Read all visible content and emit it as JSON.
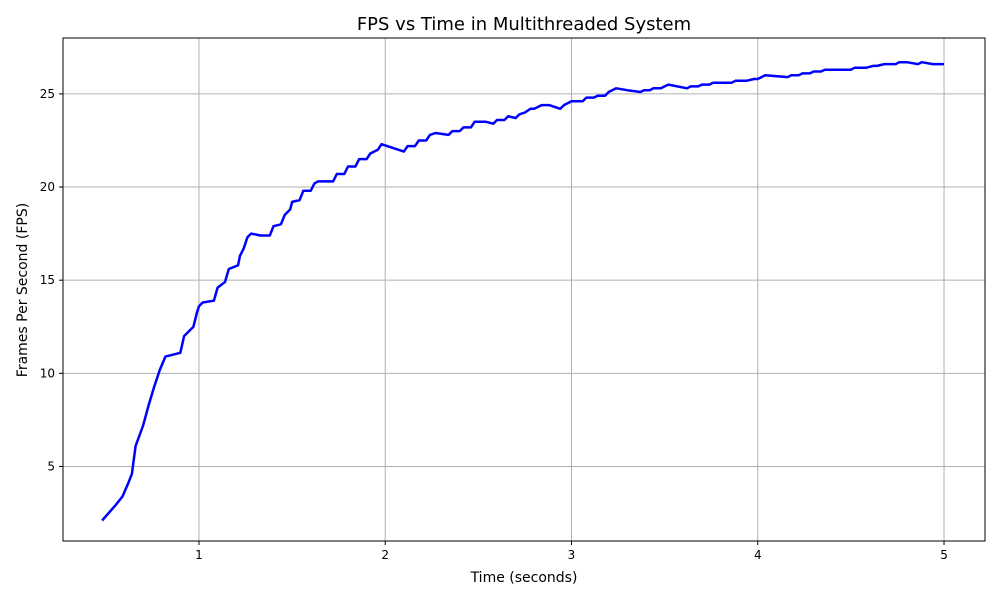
{
  "chart_data": {
    "type": "line",
    "title": "FPS vs Time in Multithreaded System",
    "xlabel": "Time (seconds)",
    "ylabel": "Frames Per Second (FPS)",
    "xlim": [
      0.27,
      5.22
    ],
    "ylim": [
      1.0,
      28.0
    ],
    "xticks": [
      1,
      2,
      3,
      4,
      5
    ],
    "yticks": [
      5,
      10,
      15,
      20,
      25
    ],
    "grid": true,
    "series_color": "#0000ff",
    "x": [
      0.48,
      0.55,
      0.59,
      0.62,
      0.64,
      0.66,
      0.7,
      0.73,
      0.76,
      0.79,
      0.82,
      0.9,
      0.92,
      0.95,
      0.97,
      0.99,
      1.0,
      1.02,
      1.08,
      1.1,
      1.14,
      1.16,
      1.21,
      1.22,
      1.24,
      1.26,
      1.28,
      1.33,
      1.38,
      1.4,
      1.44,
      1.46,
      1.49,
      1.5,
      1.54,
      1.56,
      1.6,
      1.62,
      1.64,
      1.72,
      1.74,
      1.78,
      1.8,
      1.84,
      1.86,
      1.9,
      1.92,
      1.94,
      1.96,
      1.98,
      2.1,
      2.12,
      2.16,
      2.18,
      2.22,
      2.24,
      2.27,
      2.34,
      2.36,
      2.4,
      2.42,
      2.46,
      2.48,
      2.51,
      2.54,
      2.58,
      2.6,
      2.64,
      2.66,
      2.7,
      2.72,
      2.75,
      2.78,
      2.8,
      2.84,
      2.88,
      2.94,
      2.96,
      3.0,
      3.06,
      3.08,
      3.12,
      3.14,
      3.18,
      3.2,
      3.24,
      3.3,
      3.37,
      3.39,
      3.42,
      3.44,
      3.48,
      3.5,
      3.52,
      3.62,
      3.64,
      3.68,
      3.7,
      3.74,
      3.76,
      3.78,
      3.86,
      3.88,
      3.92,
      3.94,
      3.98,
      4.0,
      4.02,
      4.04,
      4.16,
      4.18,
      4.22,
      4.24,
      4.28,
      4.3,
      4.34,
      4.36,
      4.4,
      4.5,
      4.52,
      4.56,
      4.58,
      4.62,
      4.64,
      4.68,
      4.7,
      4.74,
      4.76,
      4.8,
      4.86,
      4.88,
      4.94,
      4.96,
      5.0
    ],
    "y": [
      2.1,
      2.9,
      3.4,
      4.1,
      4.6,
      6.1,
      7.2,
      8.3,
      9.3,
      10.2,
      10.9,
      11.1,
      12.0,
      12.3,
      12.5,
      13.3,
      13.6,
      13.8,
      13.9,
      14.6,
      14.9,
      15.6,
      15.8,
      16.3,
      16.7,
      17.3,
      17.5,
      17.4,
      17.4,
      17.9,
      18.0,
      18.5,
      18.8,
      19.2,
      19.3,
      19.8,
      19.8,
      20.2,
      20.3,
      20.3,
      20.7,
      20.7,
      21.1,
      21.1,
      21.5,
      21.5,
      21.8,
      21.9,
      22.0,
      22.3,
      21.9,
      22.2,
      22.2,
      22.5,
      22.5,
      22.8,
      22.9,
      22.8,
      23.0,
      23.0,
      23.2,
      23.2,
      23.5,
      23.5,
      23.5,
      23.4,
      23.6,
      23.6,
      23.8,
      23.7,
      23.9,
      24.0,
      24.2,
      24.2,
      24.4,
      24.4,
      24.2,
      24.4,
      24.6,
      24.6,
      24.8,
      24.8,
      24.9,
      24.9,
      25.1,
      25.3,
      25.2,
      25.1,
      25.2,
      25.2,
      25.3,
      25.3,
      25.4,
      25.5,
      25.3,
      25.4,
      25.4,
      25.5,
      25.5,
      25.6,
      25.6,
      25.6,
      25.7,
      25.7,
      25.7,
      25.8,
      25.8,
      25.9,
      26.0,
      25.9,
      26.0,
      26.0,
      26.1,
      26.1,
      26.2,
      26.2,
      26.3,
      26.3,
      26.3,
      26.4,
      26.4,
      26.4,
      26.5,
      26.5,
      26.6,
      26.6,
      26.6,
      26.7,
      26.7,
      26.6,
      26.7,
      26.6,
      26.6,
      26.6
    ]
  }
}
